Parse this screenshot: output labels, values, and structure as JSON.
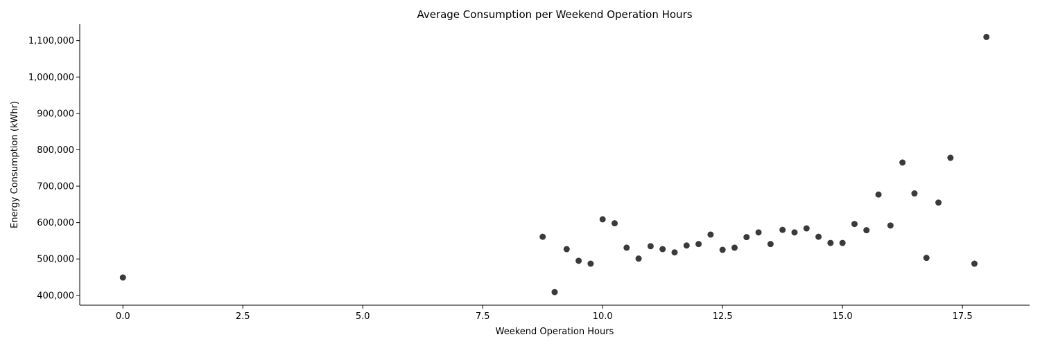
{
  "chart_data": {
    "type": "scatter",
    "title": "Average Consumption per Weekend Operation Hours",
    "xlabel": "Weekend Operation Hours",
    "ylabel": "Energy Consumption (kWhr)",
    "xlim": [
      -0.9,
      18.9
    ],
    "ylim": [
      373000,
      1145000
    ],
    "x_ticks": [
      0,
      2.5,
      5,
      7.5,
      10,
      12.5,
      15,
      17.5
    ],
    "x_tick_labels": [
      "0.0",
      "2.5",
      "5.0",
      "7.5",
      "10.0",
      "12.5",
      "15.0",
      "17.5"
    ],
    "y_ticks": [
      400000,
      500000,
      600000,
      700000,
      800000,
      900000,
      1000000,
      1100000
    ],
    "y_tick_labels": [
      "400,000",
      "500,000",
      "600,000",
      "700,000",
      "800,000",
      "900,000",
      "1,000,000",
      "1,100,000"
    ],
    "grid": false,
    "marker_color": "#3a3a3a",
    "points": [
      {
        "x": 0.0,
        "y": 449000
      },
      {
        "x": 8.75,
        "y": 561000
      },
      {
        "x": 9.0,
        "y": 409000
      },
      {
        "x": 9.25,
        "y": 527000
      },
      {
        "x": 9.5,
        "y": 495000
      },
      {
        "x": 9.75,
        "y": 487000
      },
      {
        "x": 10.0,
        "y": 609000
      },
      {
        "x": 10.25,
        "y": 598000
      },
      {
        "x": 10.5,
        "y": 531000
      },
      {
        "x": 10.75,
        "y": 501000
      },
      {
        "x": 11.0,
        "y": 535000
      },
      {
        "x": 11.25,
        "y": 527000
      },
      {
        "x": 11.5,
        "y": 518000
      },
      {
        "x": 11.75,
        "y": 537000
      },
      {
        "x": 12.0,
        "y": 541000
      },
      {
        "x": 12.25,
        "y": 567000
      },
      {
        "x": 12.5,
        "y": 525000
      },
      {
        "x": 12.75,
        "y": 531000
      },
      {
        "x": 13.0,
        "y": 560000
      },
      {
        "x": 13.25,
        "y": 573000
      },
      {
        "x": 13.5,
        "y": 541000
      },
      {
        "x": 13.75,
        "y": 580000
      },
      {
        "x": 14.0,
        "y": 573000
      },
      {
        "x": 14.25,
        "y": 584000
      },
      {
        "x": 14.5,
        "y": 561000
      },
      {
        "x": 14.75,
        "y": 544000
      },
      {
        "x": 15.0,
        "y": 544000
      },
      {
        "x": 15.25,
        "y": 596000
      },
      {
        "x": 15.5,
        "y": 579000
      },
      {
        "x": 15.75,
        "y": 677000
      },
      {
        "x": 16.0,
        "y": 592000
      },
      {
        "x": 16.25,
        "y": 765000
      },
      {
        "x": 16.5,
        "y": 680000
      },
      {
        "x": 16.75,
        "y": 503000
      },
      {
        "x": 17.0,
        "y": 655000
      },
      {
        "x": 17.25,
        "y": 778000
      },
      {
        "x": 17.75,
        "y": 487000
      },
      {
        "x": 18.0,
        "y": 1110000
      }
    ]
  }
}
